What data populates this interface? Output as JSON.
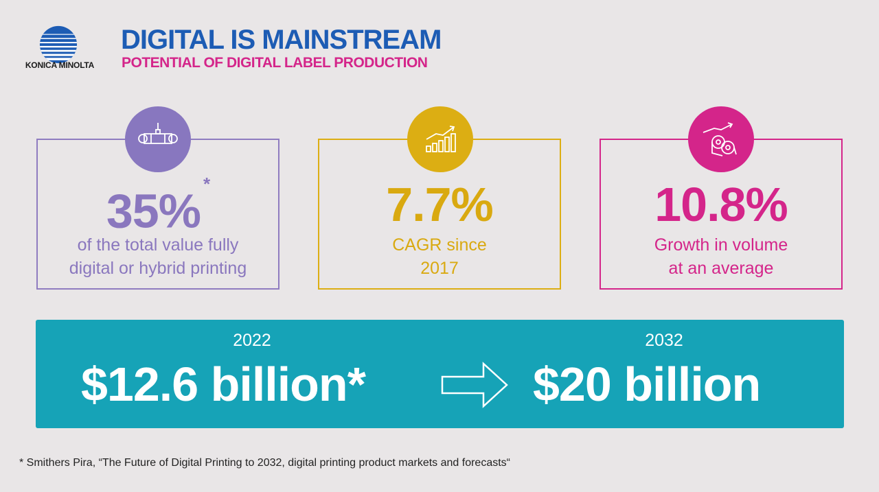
{
  "brand": {
    "name": "KONICA MINOLTA",
    "logo_icon": "globe-icon",
    "logo_color": "#1d5cb4"
  },
  "header": {
    "title": "DIGITAL IS MAINSTREAM",
    "subtitle": "POTENTIAL OF DIGITAL LABEL PRODUCTION",
    "title_color": "#1d5cb4",
    "subtitle_color": "#d4258a"
  },
  "cards": [
    {
      "icon": "printing-press-icon",
      "color": "#8877bf",
      "value": "35%",
      "marker": "*",
      "line1": "of the total value fully",
      "line2": "digital or hybrid printing"
    },
    {
      "icon": "growth-bar-chart-icon",
      "color": "#dcae13",
      "value": "7.7%",
      "line1": "CAGR since",
      "line2": "2017"
    },
    {
      "icon": "label-rolls-growth-icon",
      "color": "#d4258a",
      "value": "10.8%",
      "line1": "Growth in volume",
      "line2": "at an average"
    }
  ],
  "banner": {
    "color": "#16a3b7",
    "from_year": "2022",
    "from_amount": "$12.6 billion*",
    "to_year": "2032",
    "to_amount": "$20 billion",
    "arrow_icon": "arrow-right-icon"
  },
  "footnote": "* Smithers Pira, “The Future of Digital Printing to 2032, digital printing product markets and forecasts“"
}
